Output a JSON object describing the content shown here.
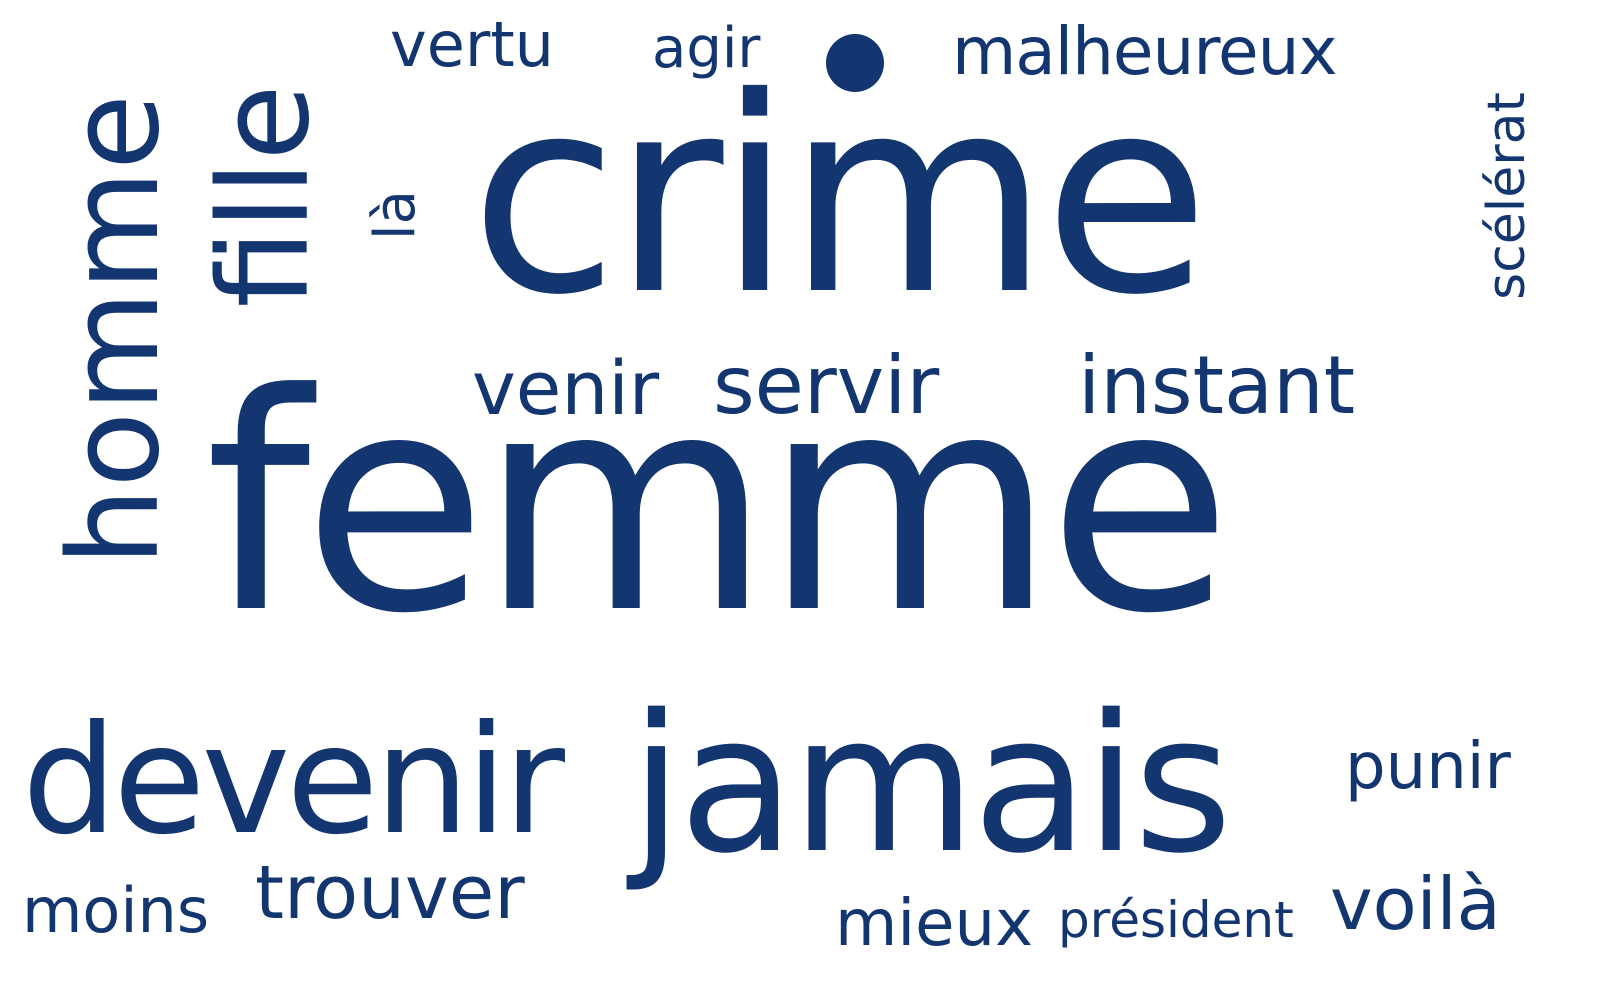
{
  "colors": {
    "word": "#133570",
    "background": "#ffffff"
  },
  "words": {
    "femme": "femme",
    "crime": "crime",
    "jamais": "jamais",
    "devenir": "devenir",
    "homme": "homme",
    "fille": "fille",
    "malheureux": "malheureux",
    "vertu": "vertu",
    "agir": "agir",
    "la": "là",
    "venir": "venir",
    "servir": "servir",
    "instant": "instant",
    "scelerat": "scélérat",
    "punir": "punir",
    "trouver": "trouver",
    "moins": "moins",
    "mieux": "mieux",
    "president": "président",
    "voila": "voilà"
  }
}
